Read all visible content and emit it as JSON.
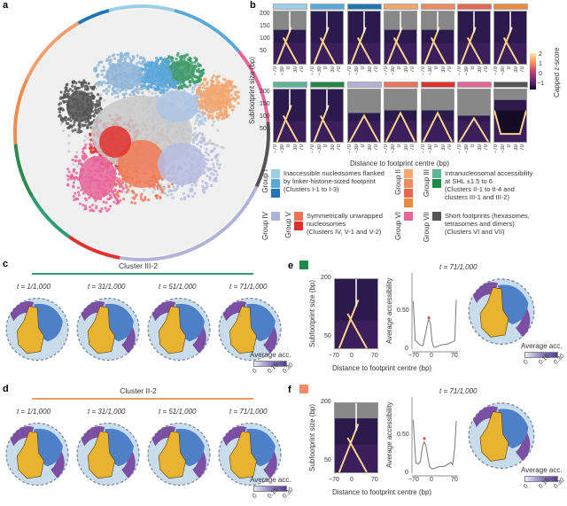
{
  "panels": {
    "a": "a",
    "b": "b",
    "c": "c",
    "d": "d",
    "e": "e",
    "f": "f"
  },
  "panel_a": {
    "ring_colors": [
      "#9ccfe6",
      "#5aa7d9",
      "#e8659a",
      "#555555",
      "#b0b2d8",
      "#b0b2d8",
      "#e0312f",
      "#2f9c73",
      "#2b8a4c",
      "#ef8d4f",
      "#f0a070",
      "#2175b5",
      "#9ccfe6"
    ]
  },
  "panel_b": {
    "ylabel": "Subfootprint size (bp)",
    "yticks": [
      "200",
      "150",
      "100",
      "50"
    ],
    "xticks": [
      "−70",
      "−30",
      "0",
      "30",
      "70"
    ],
    "xlabel": "Distance to footprint centre (bp)",
    "colorbar_label": "Capped z-score",
    "colorbar_ticks": [
      "2",
      "1",
      "0",
      "−1"
    ],
    "row1_colors": [
      "#9ccfe6",
      "#5aa7d9",
      "#2175b5",
      "#f3a66e",
      "#f08a62",
      "#e7684f",
      "#ec8a3c"
    ],
    "row2_colors": [
      "#5cb596",
      "#1e8a4a",
      "#b0b2d8",
      "#ec7358",
      "#e0312f",
      "#e8659a",
      "#555555"
    ]
  },
  "legend": [
    {
      "group": "Group I",
      "colors": [
        "#9ccfe6",
        "#5aa7d9",
        "#2175b5"
      ],
      "text": [
        "Inaccessible nucleosomes flanked",
        "by linker-histone-sized footprint",
        "(Clusters I-1 to I-3)"
      ]
    },
    {
      "group": "Group II",
      "colors": [
        "#f3a66e",
        "#f08a62",
        "#e7684f",
        "#ec8a3c"
      ]
    },
    {
      "group": "Group III",
      "colors": [
        "#5cb596",
        "#1e8a4a"
      ],
      "text": [
        "Intranucleosomal accessibility",
        "at SHL ±1.5 to 6",
        "(Clusters II-1 to II-4 and",
        "clusters III-1 and III-2)"
      ]
    },
    {
      "group": "Group IV",
      "colors": [
        "#b0b2d8"
      ]
    },
    {
      "group": "Group V",
      "colors": [
        "#ec7358",
        "#e0312f"
      ],
      "text": [
        "Symmetrically unwrapped",
        "nucleosomes",
        "(Clusters IV, V-1 and V-2)"
      ]
    },
    {
      "group": "Group VI",
      "colors": [
        "#e8659a"
      ]
    },
    {
      "group": "Group VII",
      "colors": [
        "#555555"
      ],
      "text": [
        "Short footprints (hexasomes,",
        "tetrasomes and dimers)",
        "(Clusters VI and VII)"
      ]
    }
  ],
  "panel_c": {
    "title": "Cluster III-2",
    "color": "#2f9c73",
    "times": [
      "t = 1/1,000",
      "t = 31/1,000",
      "t = 51/1,000",
      "t = 71/1,000"
    ],
    "colorbar_label": "Average acc.",
    "colorbar_ticks": [
      "0",
      "0.15",
      "0.30"
    ]
  },
  "panel_d": {
    "title": "Cluster II-2",
    "color": "#ef9a6a",
    "times": [
      "t = 1/1,000",
      "t = 31/1,000",
      "t = 51/1,000",
      "t = 71/1,000"
    ],
    "colorbar_label": "Average acc.",
    "colorbar_ticks": [
      "0",
      "0.15",
      "0.30"
    ]
  },
  "panel_e": {
    "color": "#1e8a4a",
    "time": "t = 71/1,000",
    "ylabel": "Subfootprint size (bp)",
    "yticks": [
      "200",
      "50"
    ],
    "xticks": [
      "−70",
      "0",
      "70"
    ],
    "acc_label": "Average accessibility",
    "acc_ticks": [
      "0.50",
      "0"
    ],
    "xlabel": "Distance to footprint centre (bp)",
    "colorbar_label": "Average acc.",
    "colorbar_ticks": [
      "0",
      "0.15",
      "0.30"
    ]
  },
  "panel_f": {
    "color": "#ef8d65",
    "time": "t = 71/1,000",
    "ylabel": "Subfootprint size (bp)",
    "yticks": [
      "200",
      "50"
    ],
    "xticks": [
      "−70",
      "0",
      "70"
    ],
    "acc_label": "Average accessibility",
    "acc_ticks": [
      "0.50",
      "0"
    ],
    "xlabel": "Distance to footprint centre (bp)",
    "colorbar_label": "Average acc.",
    "colorbar_ticks": [
      "0",
      "0.15",
      "0.30"
    ]
  },
  "chart_data": [
    {
      "type": "line",
      "panel": "e",
      "xlabel": "Distance to footprint centre (bp)",
      "ylabel": "Average accessibility",
      "xlim": [
        -70,
        70
      ],
      "ylim": [
        0,
        0.9
      ],
      "x": [
        -72,
        -68,
        -65,
        -60,
        -50,
        -40,
        -30,
        -25,
        -20,
        -15,
        -10,
        -5,
        0,
        20,
        40,
        55,
        65,
        70
      ],
      "y": [
        0.57,
        0.3,
        0.1,
        0.09,
        0.05,
        0.04,
        0.2,
        0.3,
        0.35,
        0.3,
        0.1,
        0.03,
        0.02,
        0.05,
        0.06,
        0.08,
        0.1,
        0.58
      ],
      "marker": {
        "x": -20,
        "y": 0.37,
        "color": "#e03a3a"
      }
    },
    {
      "type": "line",
      "panel": "f",
      "xlabel": "Distance to footprint centre (bp)",
      "ylabel": "Average accessibility",
      "xlim": [
        -70,
        70
      ],
      "ylim": [
        0,
        0.9
      ],
      "x": [
        -72,
        -68,
        -63,
        -55,
        -48,
        -42,
        -36,
        -30,
        -24,
        -18,
        -10,
        0,
        15,
        30,
        45,
        52,
        58,
        65,
        70
      ],
      "y": [
        0.63,
        0.4,
        0.12,
        0.11,
        0.14,
        0.3,
        0.37,
        0.33,
        0.2,
        0.08,
        0.05,
        0.06,
        0.08,
        0.08,
        0.11,
        0.13,
        0.1,
        0.3,
        0.62
      ],
      "marker": {
        "x": -35,
        "y": 0.41,
        "color": "#e03a3a"
      }
    }
  ]
}
